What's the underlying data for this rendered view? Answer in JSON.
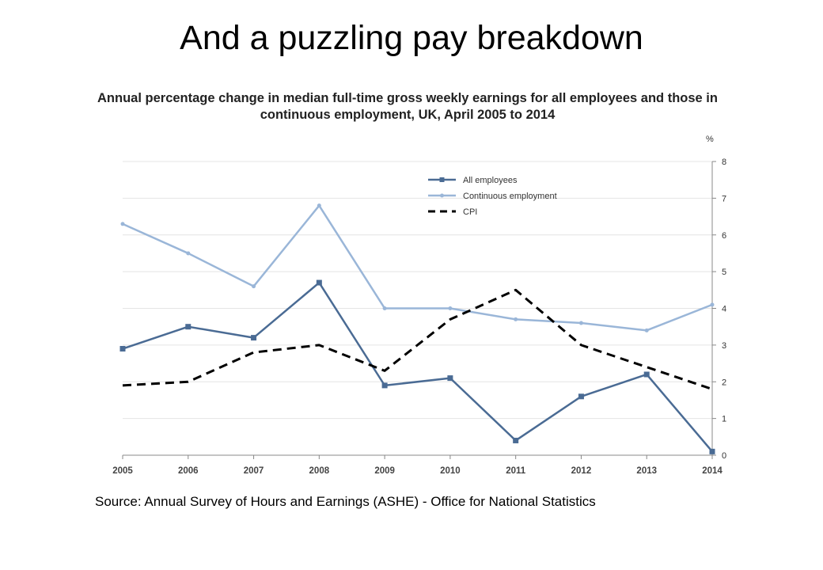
{
  "slide": {
    "title": "And a puzzling pay breakdown",
    "source": "Source: Annual Survey of Hours and Earnings (ASHE) - Office for National Statistics"
  },
  "chart_data": {
    "type": "line",
    "title": "Annual percentage change in median full-time gross weekly earnings for all employees and those in continuous employment, UK, April 2005 to 2014",
    "ylabel": "%",
    "xlabel": "",
    "x": [
      "2005",
      "2006",
      "2007",
      "2008",
      "2009",
      "2010",
      "2011",
      "2012",
      "2013",
      "2014"
    ],
    "ylim": [
      0,
      8
    ],
    "yticks": [
      0,
      1,
      2,
      3,
      4,
      5,
      6,
      7,
      8
    ],
    "y_axis_side": "right",
    "grid": true,
    "legend_position": "top-center",
    "series": [
      {
        "name": "All employees",
        "values": [
          2.9,
          3.5,
          3.2,
          4.7,
          1.9,
          2.1,
          0.4,
          1.6,
          2.2,
          0.1
        ],
        "color": "#4a6b94",
        "style": "solid",
        "marker": "square"
      },
      {
        "name": "Continuous employment",
        "values": [
          6.3,
          5.5,
          4.6,
          6.8,
          4.0,
          4.0,
          3.7,
          3.6,
          3.4,
          4.1
        ],
        "color": "#9ab6d8",
        "style": "solid",
        "marker": "dot"
      },
      {
        "name": "CPI",
        "values": [
          1.9,
          2.0,
          2.8,
          3.0,
          2.3,
          3.7,
          4.5,
          3.0,
          2.4,
          1.8
        ],
        "color": "#000000",
        "style": "dashed",
        "marker": "none"
      }
    ]
  }
}
